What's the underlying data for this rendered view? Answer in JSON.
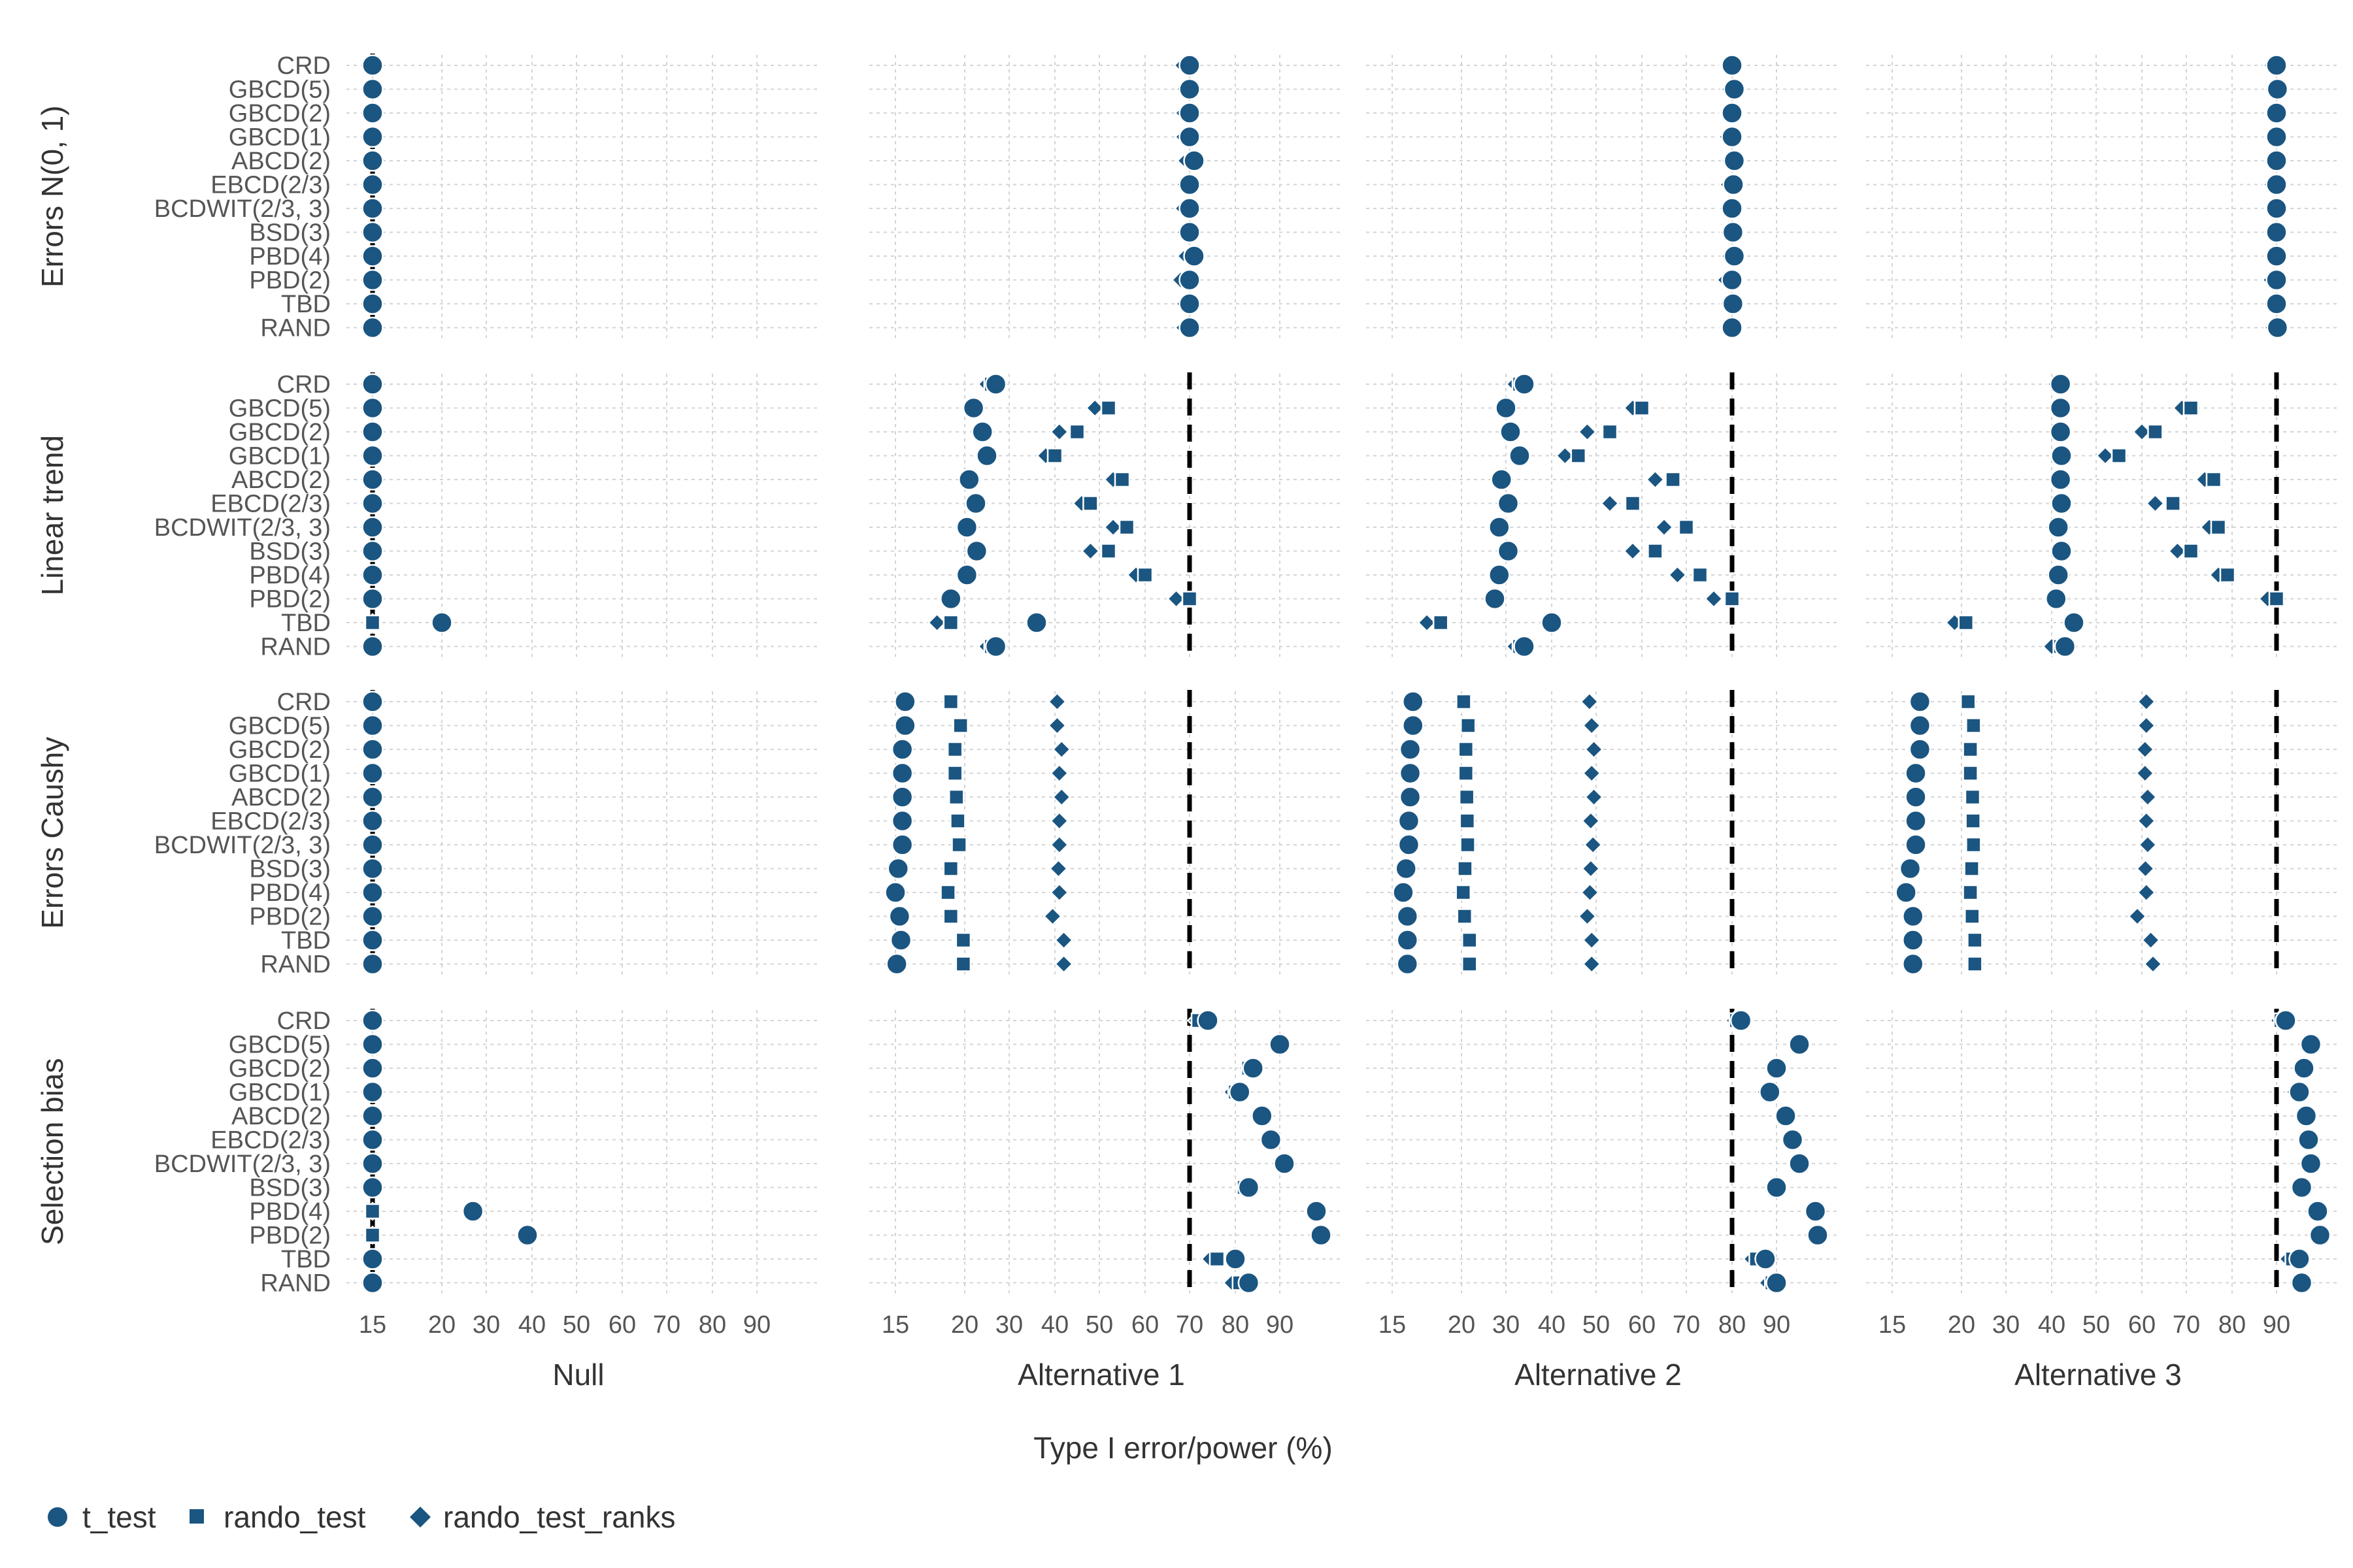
{
  "chart_data": {
    "type": "dot",
    "xlabel": "Type I error/power (%)",
    "x_ticks": [
      "15",
      "20",
      "30",
      "40",
      "50",
      "60",
      "70",
      "80",
      "90"
    ],
    "reference_lines": [
      5,
      70,
      80,
      90
    ],
    "categories": [
      "CRD",
      "GBCD(5)",
      "GBCD(2)",
      "GBCD(1)",
      "ABCD(2)",
      "EBCD(2/3)",
      "BCDWIT(2/3, 3)",
      "BSD(3)",
      "PBD(4)",
      "PBD(2)",
      "TBD",
      "RAND"
    ],
    "columns": [
      "Null",
      "Alternative 1",
      "Alternative 2",
      "Alternative 3"
    ],
    "rows": [
      "Errors N(0, 1)",
      "Linear trend",
      "Errors Caushy",
      "Selection bias"
    ],
    "series_names": [
      "t_test",
      "rando_test",
      "rando_test_ranks"
    ],
    "marker_color": "#1b5581",
    "legend_position": "bottom-left",
    "panels": [
      {
        "row": "Errors N(0, 1)",
        "col": "Null",
        "t_test": [
          5,
          5,
          5,
          5,
          5,
          5,
          5,
          5,
          5,
          5,
          5,
          5
        ],
        "rando_test": [
          5,
          5,
          5,
          5,
          5,
          5,
          5,
          5,
          5,
          5,
          5,
          5
        ],
        "rando_test_ranks": [
          5,
          5,
          5,
          5,
          5,
          5,
          5,
          5,
          5,
          5,
          5,
          5
        ]
      },
      {
        "row": "Errors N(0, 1)",
        "col": "Alternative 1",
        "t_test": [
          70,
          70,
          70,
          70,
          71,
          70,
          70,
          70,
          71,
          70,
          70,
          70
        ],
        "rando_test": [
          69.8,
          70,
          70,
          69.8,
          70.5,
          70,
          69.8,
          70,
          70.5,
          70,
          70,
          70
        ],
        "rando_test_ranks": [
          68.5,
          69,
          68.7,
          68.7,
          69.2,
          69,
          68.6,
          69,
          69.2,
          68,
          68.9,
          68.7
        ]
      },
      {
        "row": "Errors N(0, 1)",
        "col": "Alternative 2",
        "t_test": [
          80,
          80.5,
          80,
          80,
          80.5,
          80.3,
          80,
          80.2,
          80.5,
          80,
          80.2,
          80
        ],
        "rando_test": [
          80,
          80.3,
          80,
          79.8,
          80.3,
          80,
          79.8,
          80,
          80.3,
          79.8,
          80,
          79.9
        ],
        "rando_test_ranks": [
          79.2,
          79.5,
          79.2,
          79,
          79.6,
          79.2,
          79.1,
          79.3,
          79.5,
          78.6,
          79.3,
          79.2
        ]
      },
      {
        "row": "Errors N(0, 1)",
        "col": "Alternative 3",
        "t_test": [
          90,
          90.2,
          90,
          90,
          90,
          90,
          90,
          90,
          90,
          90,
          90,
          90.2
        ],
        "rando_test": [
          89.8,
          90,
          89.9,
          89.8,
          89.9,
          89.9,
          89.8,
          89.9,
          89.9,
          89.8,
          89.9,
          89.9
        ],
        "rando_test_ranks": [
          89,
          89.3,
          89.2,
          89.2,
          89.2,
          89,
          89.2,
          89.2,
          89.2,
          88.8,
          89.1,
          89.2
        ]
      },
      {
        "row": "Linear trend",
        "col": "Null",
        "t_test": [
          5,
          4,
          4.2,
          4.4,
          4,
          4.3,
          4,
          4,
          4,
          4,
          20,
          5
        ],
        "rando_test": [
          5,
          5,
          5,
          5,
          5,
          5,
          5,
          5,
          5,
          5,
          5,
          5
        ],
        "rando_test_ranks": [
          5,
          5,
          5,
          5,
          5,
          5,
          5,
          5,
          5,
          5,
          5,
          5
        ]
      },
      {
        "row": "Linear trend",
        "col": "Alternative 1",
        "t_test": [
          27,
          22,
          24,
          25,
          21,
          22.5,
          20.5,
          22.7,
          20.5,
          19,
          36,
          27
        ],
        "rando_test": [
          26,
          52,
          45,
          40,
          55,
          48,
          56,
          52,
          60,
          70,
          19,
          26
        ],
        "rando_test_ranks": [
          25,
          49,
          41,
          38,
          53,
          46,
          53,
          48,
          58,
          67,
          18,
          25
        ]
      },
      {
        "row": "Linear trend",
        "col": "Alternative 2",
        "t_test": [
          34,
          30,
          31,
          33,
          29,
          30.5,
          28.5,
          30.5,
          28.5,
          27.5,
          40,
          34
        ],
        "rando_test": [
          33,
          60,
          53,
          46,
          67,
          58,
          70,
          63,
          73,
          80,
          18.5,
          33
        ],
        "rando_test_ranks": [
          32,
          58,
          48,
          43,
          63,
          53,
          65,
          58,
          68,
          76,
          17.5,
          32
        ]
      },
      {
        "row": "Linear trend",
        "col": "Alternative 3",
        "t_test": [
          42,
          42,
          42,
          42.2,
          42,
          42.2,
          41.5,
          42.2,
          41.5,
          41,
          45,
          43
        ],
        "rando_test": [
          42,
          71,
          63,
          55,
          76,
          67,
          77,
          71,
          79,
          90,
          21,
          42
        ],
        "rando_test_ranks": [
          41,
          69,
          60,
          52,
          74,
          63,
          75,
          68,
          77,
          88,
          19.5,
          40
        ]
      },
      {
        "row": "Errors Caushy",
        "col": "Null",
        "t_test": [
          4,
          4,
          3.9,
          4,
          3.8,
          4,
          3.8,
          3.8,
          3.6,
          3.8,
          3.8,
          3.8
        ],
        "rando_test": [
          5,
          5,
          5,
          5,
          5,
          5,
          5,
          5,
          5,
          5,
          5,
          5
        ],
        "rando_test_ranks": [
          4.7,
          4.7,
          4.5,
          4.6,
          4.6,
          4.6,
          4.5,
          4.5,
          4.5,
          4.8,
          4.6,
          4.6
        ]
      },
      {
        "row": "Errors Caushy",
        "col": "Alternative 1",
        "t_test": [
          15.7,
          15.7,
          15.5,
          15.5,
          15.5,
          15.5,
          15.5,
          15.2,
          14.8,
          15.3,
          15.4,
          15.1
        ],
        "rando_test": [
          19,
          19.7,
          19.3,
          19.3,
          19.4,
          19.5,
          19.6,
          19,
          18.8,
          19,
          19.9,
          19.9
        ],
        "rando_test_ranks": [
          40.5,
          40.5,
          41.5,
          41,
          41.5,
          41,
          41,
          40.8,
          41,
          39.5,
          42,
          42
        ]
      },
      {
        "row": "Errors Caushy",
        "col": "Alternative 2",
        "t_test": [
          16.5,
          16.5,
          16.3,
          16.3,
          16.3,
          16.2,
          16.2,
          16,
          15.8,
          16.1,
          16.1,
          16.1
        ],
        "rando_test": [
          20.5,
          21.5,
          21,
          21,
          21.2,
          21.3,
          21.4,
          20.8,
          20.4,
          20.7,
          21.8,
          21.8
        ],
        "rando_test_ranks": [
          48.5,
          49,
          49.5,
          49,
          49.5,
          48.8,
          49.3,
          48.8,
          48.6,
          48,
          49,
          49
        ]
      },
      {
        "row": "Errors Caushy",
        "col": "Alternative 3",
        "t_test": [
          17,
          17,
          17,
          16.7,
          16.7,
          16.7,
          16.7,
          16.3,
          16,
          16.5,
          16.5,
          16.5
        ],
        "rando_test": [
          21.5,
          22.7,
          22,
          22,
          22.5,
          22.6,
          22.7,
          22.3,
          22,
          22.4,
          23,
          23
        ],
        "rando_test_ranks": [
          61,
          61,
          60.7,
          60.7,
          61.3,
          61,
          61.3,
          60.8,
          61,
          59,
          62,
          62.5
        ]
      },
      {
        "row": "Selection bias",
        "col": "Null",
        "t_test": [
          5.5,
          12,
          8,
          7,
          8.5,
          11.5,
          14,
          7,
          27,
          39,
          5.2,
          7
        ],
        "rando_test": [
          5,
          5,
          5,
          5,
          5,
          5,
          5,
          5,
          5,
          5,
          5,
          5
        ],
        "rando_test_ranks": [
          5,
          5,
          5,
          5,
          5,
          5,
          5,
          5,
          5,
          5,
          5,
          5
        ]
      },
      {
        "row": "Selection bias",
        "col": "Alternative 1",
        "t_test": [
          74,
          90,
          84,
          81,
          86,
          88,
          91,
          83,
          98,
          99,
          80,
          83
        ],
        "rando_test": [
          72,
          90,
          83,
          80,
          86,
          88,
          91,
          82,
          98,
          99,
          76,
          81
        ],
        "rando_test_ranks": [
          71.5,
          90,
          82.7,
          79.3,
          85.7,
          87.7,
          91,
          82.3,
          98,
          99,
          74.5,
          79.3
        ]
      },
      {
        "row": "Selection bias",
        "col": "Alternative 2",
        "t_test": [
          82,
          95,
          90,
          88.5,
          92,
          93.5,
          95,
          90,
          98.5,
          99,
          87.5,
          90
        ],
        "rando_test": [
          81,
          95,
          90,
          88,
          92,
          93.5,
          95,
          90,
          98.5,
          99,
          85.5,
          89
        ],
        "rando_test_ranks": [
          80.5,
          95,
          89.5,
          87.5,
          92,
          93.5,
          95,
          90,
          98.5,
          99,
          84.5,
          88
        ]
      },
      {
        "row": "Selection bias",
        "col": "Alternative 3",
        "t_test": [
          92,
          97.5,
          96,
          95,
          96.5,
          97,
          97.5,
          95.5,
          99,
          99.5,
          95,
          95.5
        ],
        "rando_test": [
          91,
          97.5,
          96,
          94.5,
          96.5,
          97,
          97.5,
          95.5,
          99,
          99.5,
          93.5,
          95.5
        ],
        "rando_test_ranks": [
          90.5,
          97.5,
          96,
          94,
          96.5,
          97,
          97.5,
          95.5,
          99,
          99.5,
          92.5,
          95.5
        ]
      }
    ]
  }
}
